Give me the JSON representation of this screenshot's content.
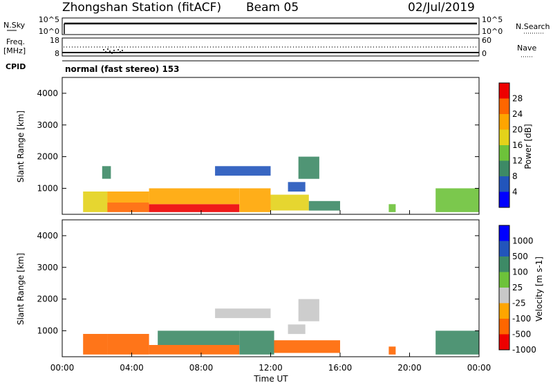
{
  "header": {
    "title": "Zhongshan Station (fitACF)",
    "beam": "Beam 05",
    "date": "02/Jul/2019"
  },
  "panels": {
    "nsky": {
      "label": "N.Sky",
      "ytop": "10^5",
      "ybot": "10^0",
      "right_label": "N.Search",
      "rtop": "10^5",
      "rbot": "10^0"
    },
    "freq": {
      "label_line1": "Freq.",
      "label_line2": "[MHz]",
      "ytop": "18",
      "ybot": "8",
      "right_label": "Nave",
      "rtop": "60",
      "rbot": "0"
    },
    "cpid": {
      "label": "CPID",
      "text": "normal (fast stereo) 153"
    }
  },
  "xaxis": {
    "title": "Time UT",
    "ticks": [
      "00:00",
      "04:00",
      "08:00",
      "12:00",
      "16:00",
      "20:00",
      "00:00"
    ]
  },
  "chart_data": [
    {
      "type": "heatmap",
      "title": "",
      "xlabel": "Time UT",
      "ylabel": "Slant Range [km]",
      "yticks": [
        "1000",
        "2000",
        "3000",
        "4000"
      ],
      "ylim": [
        180,
        4500
      ],
      "xlim_hours": [
        0,
        24
      ],
      "colorbar": {
        "label": "Power [dB]",
        "ticks": [
          "4",
          "8",
          "12",
          "16",
          "20",
          "24",
          "28"
        ],
        "range": [
          0,
          30
        ],
        "colors": [
          "#0000ff",
          "#2255bb",
          "#3d8a66",
          "#6dc23a",
          "#e3d21a",
          "#ffa500",
          "#ff6600",
          "#ee0000"
        ]
      },
      "regions": [
        {
          "t0": 1.2,
          "t1": 2.6,
          "r0": 250,
          "r1": 900,
          "value": 18
        },
        {
          "t0": 2.6,
          "t1": 5.0,
          "r0": 250,
          "r1": 550,
          "value": 26
        },
        {
          "t0": 2.6,
          "t1": 5.0,
          "r0": 550,
          "r1": 900,
          "value": 20
        },
        {
          "t0": 5.0,
          "t1": 10.2,
          "r0": 250,
          "r1": 500,
          "value": 27
        },
        {
          "t0": 5.0,
          "t1": 10.2,
          "r0": 500,
          "r1": 1000,
          "value": 19
        },
        {
          "t0": 10.2,
          "t1": 12.0,
          "r0": 250,
          "r1": 1000,
          "value": 20
        },
        {
          "t0": 12.0,
          "t1": 14.2,
          "r0": 300,
          "r1": 800,
          "value": 15
        },
        {
          "t0": 14.2,
          "t1": 16.0,
          "r0": 300,
          "r1": 600,
          "value": 11
        },
        {
          "t0": 8.8,
          "t1": 12.0,
          "r0": 1400,
          "r1": 1700,
          "value": 7
        },
        {
          "t0": 13.6,
          "t1": 14.8,
          "r0": 1300,
          "r1": 2000,
          "value": 8
        },
        {
          "t0": 13.0,
          "t1": 14.0,
          "r0": 900,
          "r1": 1200,
          "value": 6
        },
        {
          "t0": 2.3,
          "t1": 2.8,
          "r0": 1300,
          "r1": 1700,
          "value": 9
        },
        {
          "t0": 21.5,
          "t1": 24.0,
          "r0": 250,
          "r1": 1000,
          "value": 14
        },
        {
          "t0": 18.8,
          "t1": 19.2,
          "r0": 250,
          "r1": 500,
          "value": 12
        }
      ]
    },
    {
      "type": "heatmap",
      "title": "",
      "xlabel": "Time UT",
      "ylabel": "Slant Range [km]",
      "yticks": [
        "1000",
        "2000",
        "3000",
        "4000"
      ],
      "ylim": [
        180,
        4500
      ],
      "xlim_hours": [
        0,
        24
      ],
      "colorbar": {
        "label": "Velocity [m s-1]",
        "ticks": [
          "1000",
          "500",
          "100",
          "25",
          "-25",
          "-100",
          "-500",
          "-1000"
        ],
        "colors": [
          "#ee0000",
          "#ff6600",
          "#ffa500",
          "#c8c8c8",
          "#6dc23a",
          "#3d8a66",
          "#2255bb",
          "#0000ff"
        ]
      },
      "regions": [
        {
          "t0": 1.2,
          "t1": 2.6,
          "r0": 250,
          "r1": 900,
          "value": -100
        },
        {
          "t0": 2.6,
          "t1": 5.0,
          "r0": 250,
          "r1": 900,
          "value": -150
        },
        {
          "t0": 5.0,
          "t1": 10.2,
          "r0": 250,
          "r1": 550,
          "value": -150
        },
        {
          "t0": 5.5,
          "t1": 10.2,
          "r0": 550,
          "r1": 1000,
          "value": 150
        },
        {
          "t0": 10.2,
          "t1": 12.2,
          "r0": 250,
          "r1": 1000,
          "value": 120
        },
        {
          "t0": 12.2,
          "t1": 16.0,
          "r0": 300,
          "r1": 700,
          "value": -120
        },
        {
          "t0": 8.8,
          "t1": 12.0,
          "r0": 1400,
          "r1": 1700,
          "value": 0
        },
        {
          "t0": 13.6,
          "t1": 14.8,
          "r0": 1300,
          "r1": 2000,
          "value": 0
        },
        {
          "t0": 13.0,
          "t1": 14.0,
          "r0": 900,
          "r1": 1200,
          "value": 20
        },
        {
          "t0": 21.5,
          "t1": 24.0,
          "r0": 250,
          "r1": 1000,
          "value": 150
        },
        {
          "t0": 18.8,
          "t1": 19.2,
          "r0": 250,
          "r1": 500,
          "value": -100
        }
      ]
    }
  ]
}
